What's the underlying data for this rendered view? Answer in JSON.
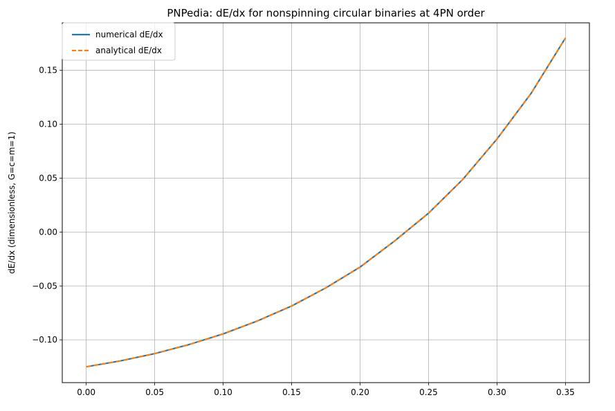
{
  "chart_data": {
    "type": "line",
    "title": "PNPedia: dE/dx for nonspinning circular binaries at 4PN order",
    "xlabel": "",
    "ylabel": "dE/dx (dimensionless, G=c=m=1)",
    "xlim": [
      -0.0175,
      0.3675
    ],
    "ylim": [
      -0.1397,
      0.1941
    ],
    "xticks": [
      0.0,
      0.05,
      0.1,
      0.15,
      0.2,
      0.25,
      0.3,
      0.35
    ],
    "xtick_labels": [
      "0.00",
      "0.05",
      "0.10",
      "0.15",
      "0.20",
      "0.25",
      "0.30",
      "0.35"
    ],
    "yticks": [
      -0.1,
      -0.05,
      0.0,
      0.05,
      0.1,
      0.15
    ],
    "ytick_labels": [
      "−0.10",
      "−0.05",
      "0.00",
      "0.05",
      "0.10",
      "0.15"
    ],
    "grid": true,
    "legend_position": "top-left",
    "series": [
      {
        "name": "numerical dE/dx",
        "color": "#1f77b4",
        "style": "solid",
        "x": [
          0.0,
          0.025,
          0.05,
          0.075,
          0.1,
          0.125,
          0.15,
          0.175,
          0.2,
          0.225,
          0.25,
          0.275,
          0.3,
          0.325,
          0.35
        ],
        "y": [
          -0.125,
          -0.1195,
          -0.1128,
          -0.1044,
          -0.0945,
          -0.0825,
          -0.0686,
          -0.0518,
          -0.0325,
          -0.0085,
          0.0175,
          0.0488,
          0.0863,
          0.1288,
          0.18
        ]
      },
      {
        "name": "analytical dE/dx",
        "color": "#ff7f0e",
        "style": "dashed",
        "x": [
          0.0,
          0.025,
          0.05,
          0.075,
          0.1,
          0.125,
          0.15,
          0.175,
          0.2,
          0.225,
          0.25,
          0.275,
          0.3,
          0.325,
          0.35
        ],
        "y": [
          -0.125,
          -0.1195,
          -0.1128,
          -0.1044,
          -0.0945,
          -0.0825,
          -0.0686,
          -0.0518,
          -0.0325,
          -0.0085,
          0.0175,
          0.0488,
          0.0863,
          0.1288,
          0.18
        ]
      }
    ]
  }
}
